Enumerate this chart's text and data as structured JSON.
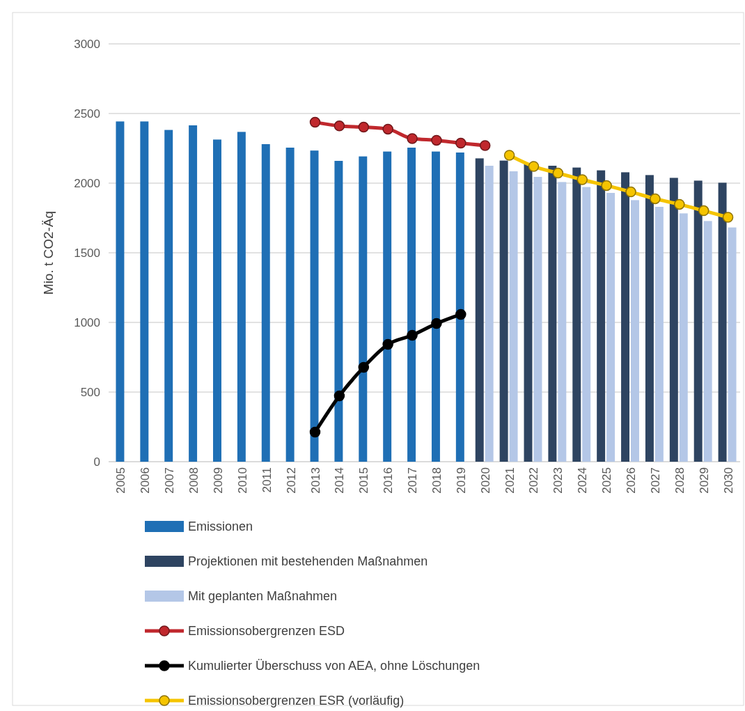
{
  "chart_data": {
    "type": "bar",
    "ylabel": "Mio. t CO2-Äq",
    "categories": [
      "2005",
      "2006",
      "2007",
      "2008",
      "2009",
      "2010",
      "2011",
      "2012",
      "2013",
      "2014",
      "2015",
      "2016",
      "2017",
      "2018",
      "2019",
      "2020",
      "2021",
      "2022",
      "2023",
      "2024",
      "2025",
      "2026",
      "2027",
      "2028",
      "2029",
      "2030"
    ],
    "series": [
      {
        "name": "Emissionen",
        "color": "#1f6fb5",
        "values": [
          2443,
          2443,
          2382,
          2415,
          2313,
          2368,
          2280,
          2255,
          2234,
          2160,
          2192,
          2227,
          2255,
          2227,
          2220,
          null,
          null,
          null,
          null,
          null,
          null,
          null,
          null,
          null,
          null,
          null
        ]
      },
      {
        "name": "Projektionen mit bestehenden Maßnahmen",
        "color": "#2e4461",
        "values": [
          null,
          null,
          null,
          null,
          null,
          null,
          null,
          null,
          null,
          null,
          null,
          null,
          null,
          null,
          null,
          2178,
          2162,
          2135,
          2125,
          2112,
          2092,
          2078,
          2058,
          2038,
          2018,
          2003
        ]
      },
      {
        "name": "Mit geplanten Maßnahmen",
        "color": "#b4c7e7",
        "values": [
          null,
          null,
          null,
          null,
          null,
          null,
          null,
          null,
          null,
          null,
          null,
          null,
          null,
          null,
          null,
          2125,
          2085,
          2045,
          2008,
          1972,
          1930,
          1878,
          1830,
          1783,
          1728,
          1682
        ]
      },
      {
        "name": "Emissionsobergrenzen ESD",
        "type": "line",
        "color": "#c0282d",
        "values": [
          null,
          null,
          null,
          null,
          null,
          null,
          null,
          null,
          2437,
          2411,
          2402,
          2388,
          2320,
          2308,
          2287,
          2270,
          null,
          null,
          null,
          null,
          null,
          null,
          null,
          null,
          null,
          null
        ]
      },
      {
        "name": "Kumulierter Überschuss von AEA, ohne Löschungen",
        "type": "line",
        "color": "#000000",
        "values": [
          null,
          null,
          null,
          null,
          null,
          null,
          null,
          null,
          212,
          472,
          678,
          842,
          908,
          992,
          1058,
          null,
          null,
          null,
          null,
          null,
          null,
          null,
          null,
          null,
          null,
          null
        ]
      },
      {
        "name": "Emissionsobergrenzen ESR (vorläufig)",
        "type": "line",
        "color": "#f5c400",
        "values": [
          null,
          null,
          null,
          null,
          null,
          null,
          null,
          null,
          null,
          null,
          null,
          null,
          null,
          null,
          null,
          null,
          2200,
          2120,
          2072,
          2025,
          1983,
          1937,
          1888,
          1848,
          1802,
          1755
        ]
      }
    ],
    "ylim": [
      0,
      3000
    ],
    "yticks": [
      0,
      500,
      1000,
      1500,
      2000,
      2500,
      3000
    ],
    "grid": "y",
    "legend": "bottom",
    "marker": "circle"
  }
}
